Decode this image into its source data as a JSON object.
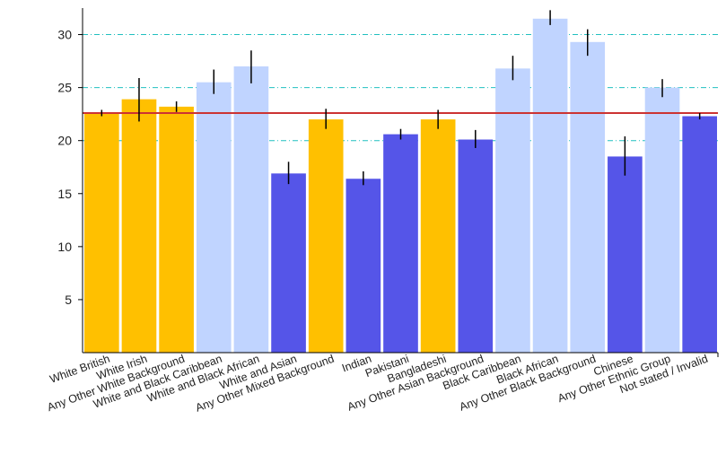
{
  "chart_data": {
    "type": "bar",
    "title": "",
    "xlabel": "",
    "ylabel": "",
    "ylim": [
      0,
      32.5
    ],
    "yticks": [
      5,
      10,
      15,
      20,
      25,
      30
    ],
    "grid": "horizontal dash-dot at 20, 25, 30",
    "reference_line": {
      "value": 22.6,
      "color": "#cc3333"
    },
    "colors": {
      "gold": "#ffc000",
      "light_blue": "#c0d4ff",
      "blue": "#5555e8",
      "grid": "#20c0c0"
    },
    "bars": [
      {
        "label": "White British",
        "value": 22.6,
        "err": [
          22.3,
          22.9
        ],
        "color": "gold"
      },
      {
        "label": "White Irish",
        "value": 23.9,
        "err": [
          21.8,
          25.9
        ],
        "color": "gold"
      },
      {
        "label": "Any Other White Background",
        "value": 23.2,
        "err": [
          22.7,
          23.7
        ],
        "color": "gold"
      },
      {
        "label": "White and Black Caribbean",
        "value": 25.5,
        "err": [
          24.4,
          26.7
        ],
        "color": "light_blue"
      },
      {
        "label": "White and Black African",
        "value": 27.0,
        "err": [
          25.4,
          28.5
        ],
        "color": "light_blue"
      },
      {
        "label": "White and Asian",
        "value": 16.9,
        "err": [
          15.9,
          18.0
        ],
        "color": "blue"
      },
      {
        "label": "Any Other Mixed Background",
        "value": 22.0,
        "err": [
          21.1,
          23.0
        ],
        "color": "gold"
      },
      {
        "label": "Indian",
        "value": 16.4,
        "err": [
          15.8,
          17.1
        ],
        "color": "blue"
      },
      {
        "label": "Pakistani",
        "value": 20.6,
        "err": [
          20.1,
          21.1
        ],
        "color": "blue"
      },
      {
        "label": "Bangladeshi",
        "value": 22.0,
        "err": [
          21.1,
          22.9
        ],
        "color": "gold"
      },
      {
        "label": "Any Other Asian Background",
        "value": 20.1,
        "err": [
          19.3,
          21.0
        ],
        "color": "blue"
      },
      {
        "label": "Black Caribbean",
        "value": 26.8,
        "err": [
          25.7,
          28.0
        ],
        "color": "light_blue"
      },
      {
        "label": "Black African",
        "value": 31.5,
        "err": [
          30.9,
          32.3
        ],
        "color": "light_blue"
      },
      {
        "label": "Any Other Black Background",
        "value": 29.3,
        "err": [
          28.0,
          30.5
        ],
        "color": "light_blue"
      },
      {
        "label": "Chinese",
        "value": 18.5,
        "err": [
          16.7,
          20.4
        ],
        "color": "blue"
      },
      {
        "label": "Any Other Ethnic Group",
        "value": 25.0,
        "err": [
          24.1,
          25.8
        ],
        "color": "light_blue"
      },
      {
        "label": "Not stated / Invalid",
        "value": 22.3,
        "err": [
          22.0,
          22.6
        ],
        "color": "blue"
      }
    ]
  }
}
